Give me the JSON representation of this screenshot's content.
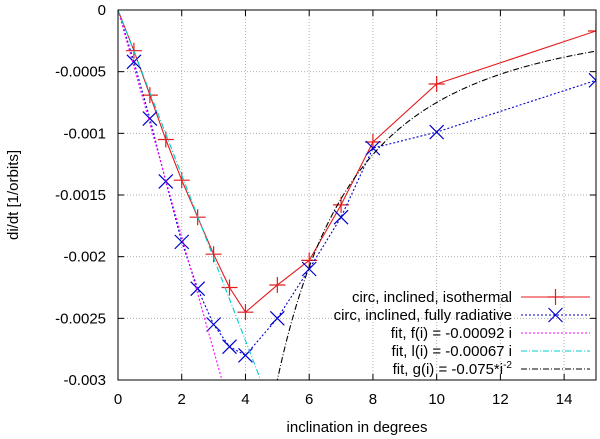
{
  "chart_data": {
    "type": "line",
    "title": "",
    "xlabel": "inclination in degrees",
    "ylabel": "di/dt [1/orbits]",
    "xlim": [
      0,
      15
    ],
    "ylim": [
      -0.003,
      0
    ],
    "x_ticks": [
      0,
      2,
      4,
      6,
      8,
      10,
      12,
      14
    ],
    "x_tick_labels": [
      "0",
      "2",
      "4",
      "6",
      "8",
      "10",
      "12",
      "14"
    ],
    "y_ticks": [
      0,
      -0.0005,
      -0.001,
      -0.0015,
      -0.002,
      -0.0025,
      -0.003
    ],
    "y_tick_labels": [
      "0",
      "-0.0005",
      "-0.001",
      "-0.0015",
      "-0.002",
      "-0.0025",
      "-0.003"
    ],
    "grid": true,
    "legend_position": "bottom-right",
    "series": [
      {
        "name": "circ, inclined, isothermal",
        "label": "circ, inclined, isothermal",
        "color": "#e41a1c",
        "style": "solid",
        "marker": "plus",
        "x": [
          0.5,
          1,
          1.5,
          2,
          2.5,
          3,
          3.5,
          4,
          5,
          6,
          7,
          8,
          10,
          15
        ],
        "y": [
          -0.00033,
          -0.00069,
          -0.00105,
          -0.00138,
          -0.00168,
          -0.00198,
          -0.00225,
          -0.00245,
          -0.00223,
          -0.00203,
          -0.00158,
          -0.00107,
          -0.0006,
          -0.00017
        ]
      },
      {
        "name": "circ, inclined, fully radiative",
        "label": "circ, inclined, fully radiative",
        "color": "#0000cc",
        "style": "dotted",
        "marker": "x",
        "x": [
          0.5,
          1,
          1.5,
          2,
          2.5,
          3,
          3.5,
          4,
          5,
          6,
          7,
          8,
          10,
          15
        ],
        "y": [
          -0.00042,
          -0.00088,
          -0.00139,
          -0.00188,
          -0.00226,
          -0.00255,
          -0.00273,
          -0.0028,
          -0.0025,
          -0.0021,
          -0.00168,
          -0.00112,
          -0.00099,
          -0.00057
        ]
      },
      {
        "name": "fit, f(i) = -0.00092 i",
        "label_main": "fit, f(i) = -0.00092 i",
        "color": "#ff00ff",
        "style": "dotted",
        "marker": "none",
        "func": "linear",
        "coef": -0.00092
      },
      {
        "name": "fit, l(i) = -0.00067 i",
        "label_main": "fit, l(i) = -0.00067 i",
        "color": "#00cccc",
        "style": "dashdot",
        "marker": "none",
        "func": "linear",
        "coef": -0.00067
      },
      {
        "name": "fit, g(i) = -0.075*i^-2",
        "label_main": "fit, g(i) = -0.075*i",
        "label_sup": "-2",
        "color": "#000000",
        "style": "dashdot",
        "marker": "none",
        "func": "inverse_square",
        "coef": -0.075
      }
    ]
  }
}
